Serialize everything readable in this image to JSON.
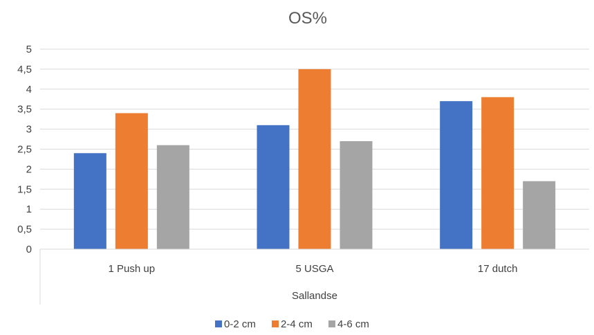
{
  "chart_data": {
    "type": "bar",
    "title": "OS%",
    "categories": [
      "1 Push up",
      "5 USGA",
      "17 dutch"
    ],
    "group_label": "Sallandse",
    "series": [
      {
        "name": "0-2 cm",
        "values": [
          2.4,
          3.1,
          3.7
        ],
        "color": "#4472C4"
      },
      {
        "name": "2-4 cm",
        "values": [
          3.4,
          4.5,
          3.8
        ],
        "color": "#ED7D31"
      },
      {
        "name": "4-6 cm",
        "values": [
          2.6,
          2.7,
          1.7
        ],
        "color": "#A5A5A5"
      }
    ],
    "yticks": [
      "0",
      "0,5",
      "1",
      "1,5",
      "2",
      "2,5",
      "3",
      "3,5",
      "4",
      "4,5",
      "5"
    ],
    "ylim": [
      0,
      5
    ],
    "grid": true,
    "legend_position": "bottom",
    "gridline_color": "#D9D9D9"
  }
}
